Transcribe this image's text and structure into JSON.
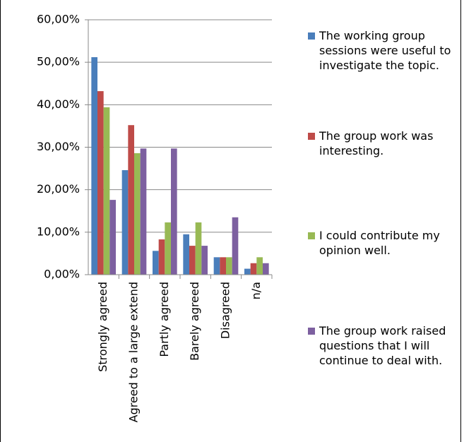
{
  "chart_data": {
    "type": "bar",
    "categories": [
      "Strongly agreed",
      "Agreed to a large extend",
      "Partly agreed",
      "Barely agreed",
      "Disagreed",
      "n/a"
    ],
    "series": [
      {
        "name": "The working group sessions were useful to investigate the topic.",
        "color": "#4a7ebb",
        "values": [
          51.2,
          24.6,
          5.6,
          9.5,
          4.1,
          1.4
        ]
      },
      {
        "name": "The group work was interesting.",
        "color": "#be4b48",
        "values": [
          43.2,
          35.2,
          8.3,
          6.8,
          4.1,
          2.7
        ]
      },
      {
        "name": "I could contribute my opinion well.",
        "color": "#98b954",
        "values": [
          39.4,
          28.6,
          12.3,
          12.3,
          4.1,
          4.1
        ]
      },
      {
        "name": "The group work raised questions that I will continue to deal with.",
        "color": "#7d60a0",
        "values": [
          17.6,
          29.7,
          29.7,
          6.8,
          13.5,
          2.7
        ]
      }
    ],
    "ylim": [
      0,
      60
    ],
    "yticks": [
      {
        "value": 0,
        "label": "0,00%"
      },
      {
        "value": 10,
        "label": "10,00%"
      },
      {
        "value": 20,
        "label": "20,00%"
      },
      {
        "value": 30,
        "label": "30,00%"
      },
      {
        "value": 40,
        "label": "40,00%"
      },
      {
        "value": 50,
        "label": "50,00%"
      },
      {
        "value": 60,
        "label": "60,00%"
      }
    ],
    "grid": true
  }
}
